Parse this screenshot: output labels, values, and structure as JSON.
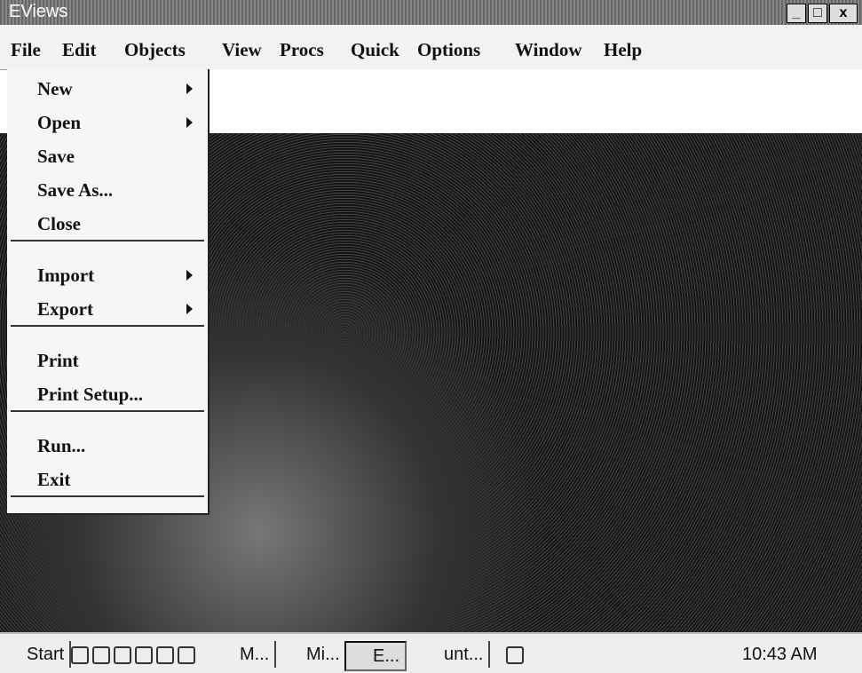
{
  "window": {
    "title": "EViews"
  },
  "menu_bar": [
    "File",
    "Edit",
    "Objects",
    "View",
    "Procs",
    "Quick",
    "Options",
    "Window",
    "Help"
  ],
  "file_menu": {
    "groups": [
      [
        {
          "label": "New",
          "submenu": true
        },
        {
          "label": "Open",
          "submenu": true
        },
        {
          "label": "Save",
          "submenu": false
        },
        {
          "label": "Save As...",
          "submenu": false
        },
        {
          "label": "Close",
          "submenu": false
        }
      ],
      [
        {
          "label": "Import",
          "submenu": true
        },
        {
          "label": "Export",
          "submenu": true
        }
      ],
      [
        {
          "label": "Print",
          "submenu": false
        },
        {
          "label": "Print Setup...",
          "submenu": false
        }
      ],
      [
        {
          "label": "Run...",
          "submenu": false
        },
        {
          "label": "Exit",
          "submenu": false
        }
      ]
    ]
  },
  "taskbar": {
    "start": "Start",
    "buttons": [
      "M...",
      "Mi...",
      "E...",
      "unt..."
    ],
    "active_button": 2,
    "clock": "10:43 AM"
  }
}
